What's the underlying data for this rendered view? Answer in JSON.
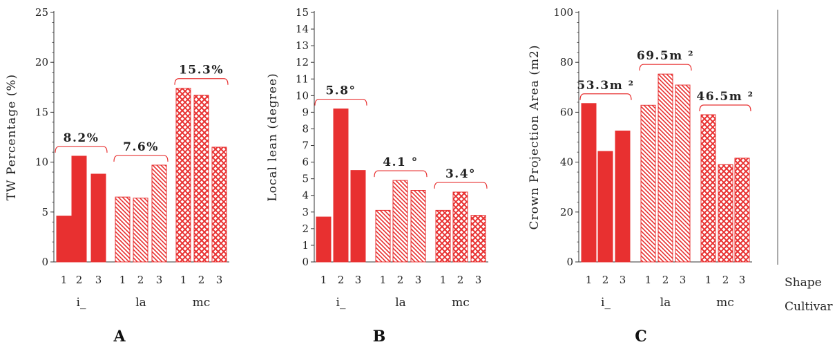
{
  "side_labels": {
    "shape": "Shape",
    "cultivar": "Cultivar"
  },
  "colors": {
    "bar": "#e83030",
    "brace": "#e83030",
    "axis": "#333333"
  },
  "chart_data": [
    {
      "type": "bar",
      "panel": "A",
      "ylabel": "TW Percentage (%)",
      "ylim": [
        0,
        25
      ],
      "yticks": [
        0,
        5,
        10,
        15,
        20,
        25
      ],
      "groups": [
        {
          "name": "i_",
          "pattern": "solid",
          "shapes": [
            "1",
            "2",
            "3"
          ],
          "values": [
            4.6,
            10.6,
            8.8
          ],
          "annotation": "8.2%"
        },
        {
          "name": "la",
          "pattern": "hatch",
          "shapes": [
            "1",
            "2",
            "3"
          ],
          "values": [
            6.5,
            6.4,
            9.7
          ],
          "annotation": "7.6%"
        },
        {
          "name": "mc",
          "pattern": "cross",
          "shapes": [
            "1",
            "2",
            "3"
          ],
          "values": [
            17.4,
            16.7,
            11.5
          ],
          "annotation": "15.3%"
        }
      ]
    },
    {
      "type": "bar",
      "panel": "B",
      "ylabel": "Local lean (degree)",
      "ylim": [
        0,
        15
      ],
      "yticks": [
        0,
        1,
        2,
        3,
        4,
        5,
        6,
        7,
        8,
        9,
        10,
        11,
        12,
        13,
        14,
        15
      ],
      "groups": [
        {
          "name": "i_",
          "pattern": "solid",
          "shapes": [
            "1",
            "2",
            "3"
          ],
          "values": [
            2.7,
            9.2,
            5.5
          ],
          "annotation": "5.8°"
        },
        {
          "name": "la",
          "pattern": "hatch",
          "shapes": [
            "1",
            "2",
            "3"
          ],
          "values": [
            3.1,
            4.9,
            4.3
          ],
          "annotation": "4.1 °"
        },
        {
          "name": "mc",
          "pattern": "cross",
          "shapes": [
            "1",
            "2",
            "3"
          ],
          "values": [
            3.1,
            4.2,
            2.8
          ],
          "annotation": "3.4°"
        }
      ]
    },
    {
      "type": "bar",
      "panel": "C",
      "ylabel": "Crown Projection Area (m2)",
      "ylim": [
        0,
        100
      ],
      "yticks": [
        0,
        20,
        40,
        60,
        80,
        100
      ],
      "groups": [
        {
          "name": "i_",
          "pattern": "solid",
          "shapes": [
            "1",
            "2",
            "3"
          ],
          "values": [
            63.5,
            44.3,
            52.5
          ],
          "annotation": "53.3m ²"
        },
        {
          "name": "la",
          "pattern": "hatch",
          "shapes": [
            "1",
            "2",
            "3"
          ],
          "values": [
            62.8,
            75.3,
            70.9
          ],
          "annotation": "69.5m ²"
        },
        {
          "name": "mc",
          "pattern": "cross",
          "shapes": [
            "1",
            "2",
            "3"
          ],
          "values": [
            59.0,
            39.0,
            41.6
          ],
          "annotation": "46.5m ²"
        }
      ]
    }
  ]
}
